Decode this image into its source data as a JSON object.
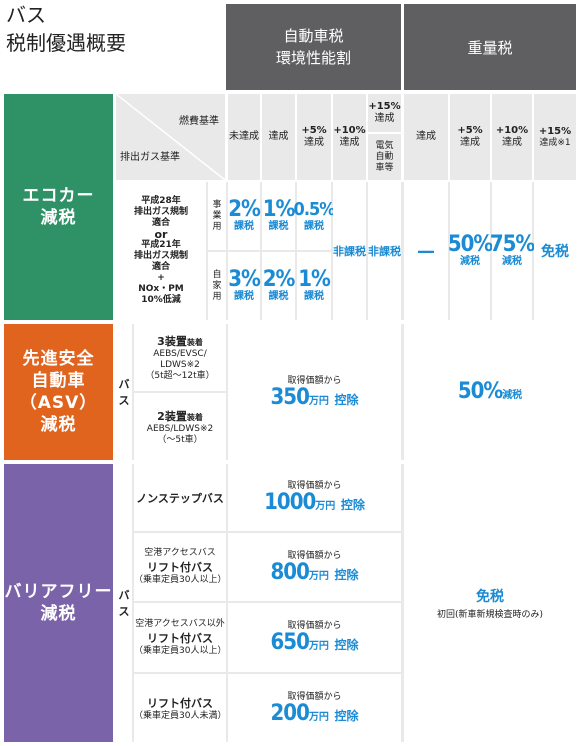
{
  "title": {
    "line1": "バス",
    "line2": "税制優遇概要"
  },
  "headers": {
    "auto_tax": "自動車税",
    "auto_tax_sub": "環境性能割",
    "weight_tax": "重量税",
    "fuel_std": "燃費基準",
    "emission_std": "排出ガス基準",
    "auto_cols": [
      "未達成",
      "達成",
      "+5%",
      "+10%",
      "+15%"
    ],
    "auto_cols_sub": [
      "",
      "",
      "達成",
      "達成",
      "達成"
    ],
    "electric": "電気自動車等",
    "weight_cols": [
      "達成",
      "+5%",
      "+10%",
      "+15%"
    ],
    "weight_cols_sub": [
      "",
      "達成",
      "達成",
      "達成※1"
    ]
  },
  "eco": {
    "label": [
      "エコカー",
      "減税"
    ],
    "criteria": [
      "平成28年",
      "排出ガス規制",
      "適合",
      "or",
      "平成21年",
      "排出ガス規制",
      "適合",
      "+",
      "NOx・PM",
      "10%低減"
    ],
    "business": "事業用",
    "private": "自家用",
    "business_vals": [
      {
        "n": "2%",
        "t": "課税"
      },
      {
        "n": "1%",
        "t": "課税"
      },
      {
        "n": "0.5%",
        "t": "課税"
      }
    ],
    "private_vals": [
      {
        "n": "3%",
        "t": "課税"
      },
      {
        "n": "2%",
        "t": "課税"
      },
      {
        "n": "1%",
        "t": "課税"
      }
    ],
    "non_tax": "非課税",
    "weight_none": "—",
    "weight_50": {
      "n": "50%",
      "t": "減税"
    },
    "weight_75": {
      "n": "75%",
      "t": "減税"
    },
    "weight_free": "免税"
  },
  "asv": {
    "label": [
      "先進安全",
      "自動車",
      "（ASV）",
      "減税"
    ],
    "bus": "バス",
    "dev3": {
      "title": "3装置",
      "suffix": "装着",
      "items": "AEBS/EVSC/",
      "items2": "LDWS※2",
      "range": "（5t超～12t車）"
    },
    "dev2": {
      "title": "2装置",
      "suffix": "装着",
      "items": "AEBS/LDWS※2",
      "range": "（～5t車）"
    },
    "deduct_pre": "取得価額から",
    "deduct_amount": "350",
    "deduct_unit": "万円",
    "deduct_word": "控除",
    "weight": {
      "n": "50%",
      "t": "減税"
    }
  },
  "bf": {
    "label": [
      "バリアフリー",
      "減税"
    ],
    "bus": "バス",
    "rows": [
      {
        "pre": "",
        "name": "ノンステップバス",
        "sub": "",
        "deduct_pre": "取得価額から",
        "amount": "1000",
        "unit": "万円",
        "word": "控除"
      },
      {
        "pre": "空港アクセスバス",
        "name": "リフト付バス",
        "sub": "（乗車定員30人以上）",
        "deduct_pre": "取得価額から",
        "amount": "800",
        "unit": "万円",
        "word": "控除"
      },
      {
        "pre": "空港アクセスバス以外",
        "name": "リフト付バス",
        "sub": "（乗車定員30人以上）",
        "deduct_pre": "取得価額から",
        "amount": "650",
        "unit": "万円",
        "word": "控除"
      },
      {
        "pre": "",
        "name": "リフト付バス",
        "sub": "（乗車定員30人未満）",
        "deduct_pre": "取得価額から",
        "amount": "200",
        "unit": "万円",
        "word": "控除"
      }
    ],
    "weight_free": "免税",
    "weight_note": "初回(新車新規検査時のみ)"
  },
  "colors": {
    "eco": "#2f9266",
    "asv": "#e0631e",
    "bf": "#7a63a8",
    "header": "#5f5f61",
    "accent": "#1a8bd4"
  }
}
